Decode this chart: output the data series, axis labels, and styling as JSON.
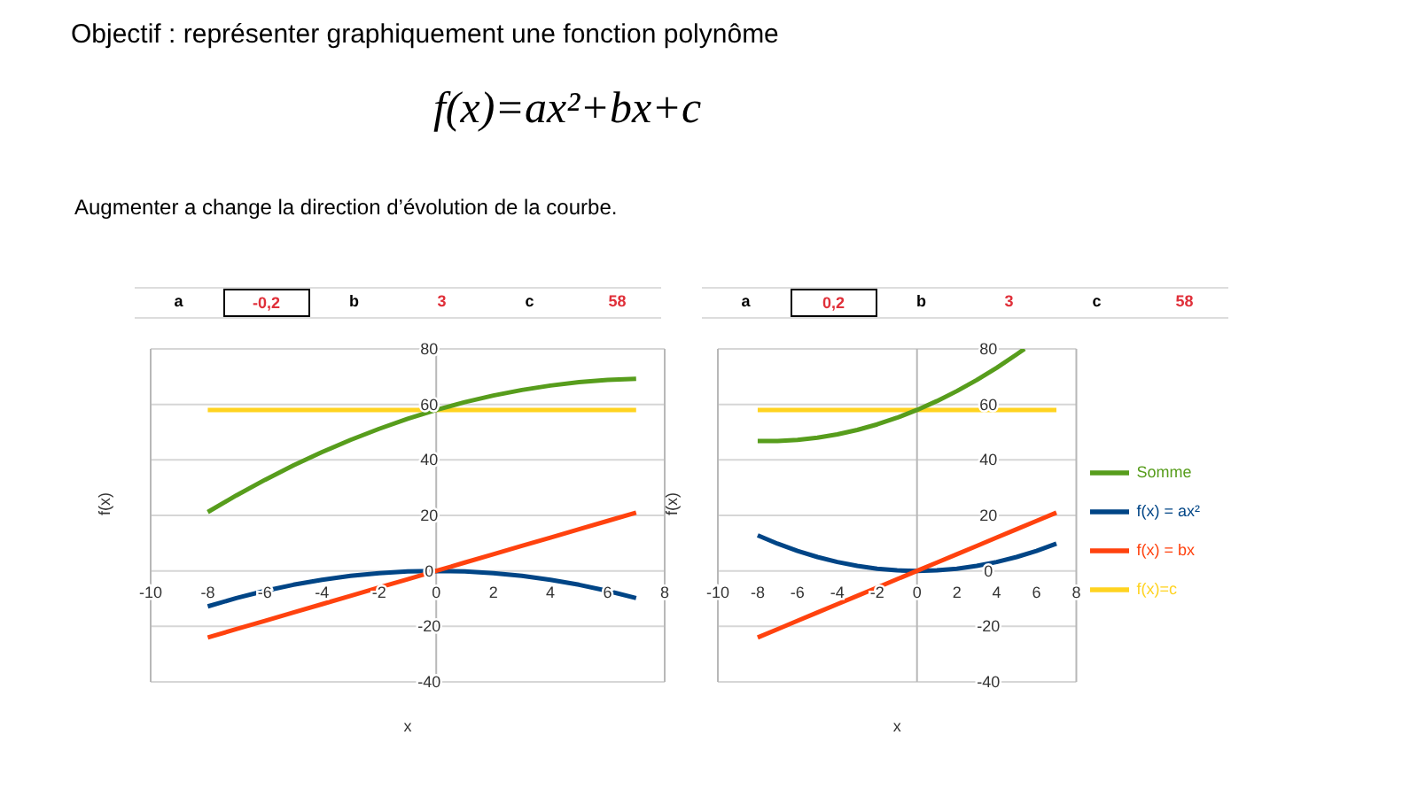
{
  "chart_data": [
    {
      "type": "line",
      "title": "Objectif : représenter graphiquement une fonction polynôme",
      "subtitle": "f(x)=ax²+bx+c",
      "xlabel": "x",
      "ylabel": "f(x)",
      "annotations": [
        "Augmenter a change la direction d’évolution de la courbe.",
        "a",
        "-0,2",
        "b",
        "3",
        "c",
        "58"
      ],
      "x": [
        -8,
        -7,
        -6,
        -5,
        -4,
        -3,
        -2,
        -1,
        0,
        1,
        2,
        3,
        4,
        5,
        6,
        7
      ],
      "series": [
        {
          "color": "#004586",
          "values": [
            -12.8,
            -9.8,
            -7.2,
            -5,
            -3.2,
            -1.8,
            -0.8,
            -0.2,
            0,
            -0.2,
            -0.8,
            -1.8,
            -3.2,
            -5,
            -7.2,
            -9.8
          ]
        },
        {
          "color": "#ff420e",
          "values": [
            -24,
            -21,
            -18,
            -15,
            -12,
            -9,
            -6,
            -3,
            0,
            3,
            6,
            9,
            12,
            15,
            18,
            21
          ]
        },
        {
          "color": "#ffd320",
          "values": [
            58,
            58,
            58,
            58,
            58,
            58,
            58,
            58,
            58,
            58,
            58,
            58,
            58,
            58,
            58,
            58
          ]
        },
        {
          "color": "#579d1c",
          "values": [
            21.2,
            27.2,
            32.8,
            38,
            42.8,
            47.2,
            51.2,
            54.8,
            58,
            60.8,
            63.2,
            65.2,
            66.8,
            68,
            68.8,
            69.2
          ]
        }
      ],
      "xlim": [
        -10,
        8
      ],
      "xticks": [
        -10,
        -8,
        -6,
        -4,
        -2,
        0,
        2,
        4,
        6,
        8
      ],
      "ylim": [
        -40,
        80
      ],
      "yticks": [
        -40,
        -20,
        0,
        20,
        40,
        60,
        80
      ],
      "grid": "y",
      "legend": false
    },
    {
      "type": "line",
      "xlabel": "x",
      "ylabel": "f(x)",
      "annotations": [
        "a",
        "0,2",
        "b",
        "3",
        "c",
        "58"
      ],
      "x": [
        -8,
        -7,
        -6,
        -5,
        -4,
        -3,
        -2,
        -1,
        0,
        1,
        2,
        3,
        4,
        5,
        6,
        7
      ],
      "series": [
        {
          "name": "f(x) = ax²",
          "color": "#004586",
          "values": [
            12.8,
            9.8,
            7.2,
            5,
            3.2,
            1.8,
            0.8,
            0.2,
            0,
            0.2,
            0.8,
            1.8,
            3.2,
            5,
            7.2,
            9.8
          ]
        },
        {
          "name": "f(x) = bx",
          "color": "#ff420e",
          "values": [
            -24,
            -21,
            -18,
            -15,
            -12,
            -9,
            -6,
            -3,
            0,
            3,
            6,
            9,
            12,
            15,
            18,
            21
          ]
        },
        {
          "name": "f(x)=c",
          "color": "#ffd320",
          "values": [
            58,
            58,
            58,
            58,
            58,
            58,
            58,
            58,
            58,
            58,
            58,
            58,
            58,
            58,
            58,
            58
          ]
        },
        {
          "name": "Somme",
          "color": "#579d1c",
          "x": [
            -8,
            -7,
            -6,
            -5,
            -4,
            -3,
            -2,
            -1,
            0,
            1,
            2,
            3,
            4,
            5,
            5.4
          ],
          "values": [
            46.8,
            46.8,
            47.2,
            48,
            49.2,
            50.8,
            52.8,
            55.2,
            58,
            61.2,
            64.8,
            68.8,
            73.2,
            78,
            80
          ]
        }
      ],
      "xlim": [
        -10,
        8
      ],
      "xticks": [
        -10,
        -8,
        -6,
        -4,
        -2,
        0,
        2,
        4,
        6,
        8
      ],
      "ylim": [
        -40,
        80
      ],
      "yticks": [
        -40,
        -20,
        0,
        20,
        40,
        60,
        80
      ],
      "grid": "y",
      "legend": "right"
    }
  ]
}
